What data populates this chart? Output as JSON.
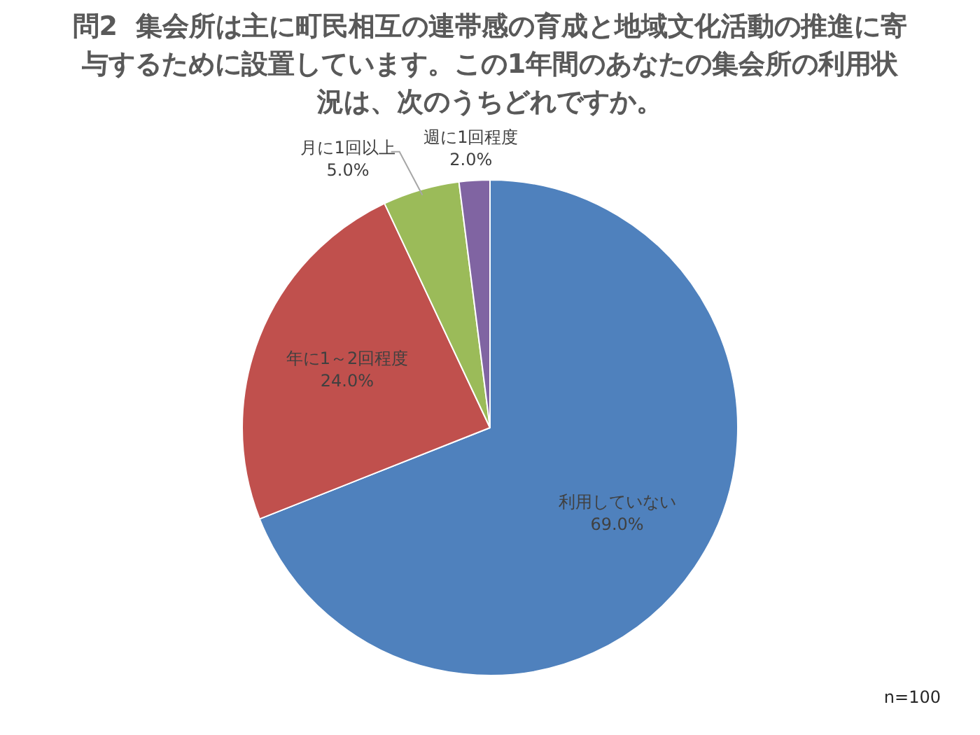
{
  "chart_data": {
    "type": "pie",
    "title": "問2  集会所は主に町民相互の連帯感の育成と地域文化活動の推進に寄与するために設置しています。この1年間のあなたの集会所の利用状況は、次のうちどれですか。",
    "categories": [
      "利用していない",
      "年に1～2回程度",
      "月に1回以上",
      "週に1回程度"
    ],
    "values": [
      69,
      24,
      5,
      2
    ],
    "colors": [
      "#4f81bd",
      "#c0504d",
      "#9bbb59",
      "#8064a2"
    ],
    "value_labels": [
      "69.0%",
      "24.0%",
      "5.0%",
      "2.0%"
    ],
    "annotations": [
      "n=100"
    ]
  }
}
